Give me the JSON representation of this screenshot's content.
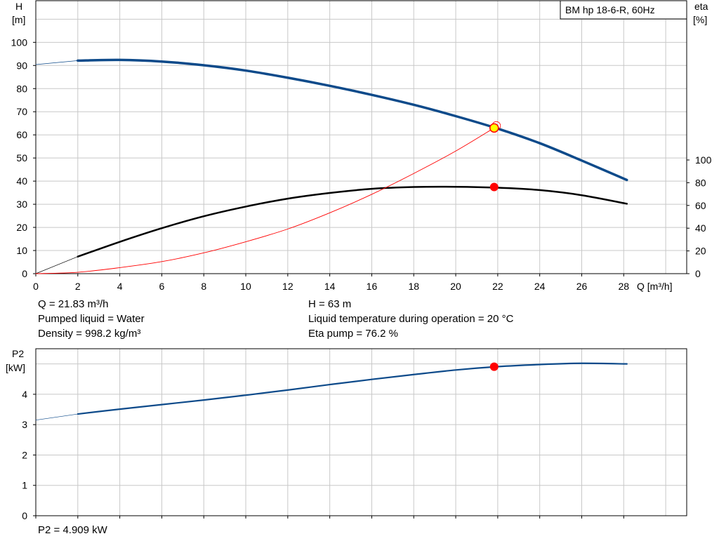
{
  "legend_title": "BM hp  18-6-R, 60Hz",
  "chart_data": [
    {
      "type": "line",
      "name": "head-efficiency",
      "xlabel": "Q [m³/h]",
      "xlim": [
        0,
        31
      ],
      "x_ticks": [
        0,
        2,
        4,
        6,
        8,
        10,
        12,
        14,
        16,
        18,
        20,
        22,
        24,
        26,
        28
      ],
      "left_axis": {
        "label_line1": "H",
        "label_line2": "[m]",
        "ylim": [
          0,
          118
        ],
        "ticks": [
          0,
          10,
          20,
          30,
          40,
          50,
          60,
          70,
          80,
          90,
          100
        ]
      },
      "right_axis": {
        "label_line1": "eta",
        "label_line2": "[%]",
        "ylim": [
          0,
          100
        ],
        "ticks": [
          0,
          20,
          40,
          60,
          80,
          100
        ]
      },
      "grid": true,
      "series": [
        {
          "id": "head",
          "axis": "left",
          "color": "#0d4a8a",
          "x": [
            2,
            4,
            6,
            8,
            10,
            12,
            14,
            16,
            18,
            20,
            22,
            24,
            26,
            28.15
          ],
          "y": [
            92.1,
            92.4,
            91.7,
            90.1,
            87.8,
            84.7,
            81.2,
            77.3,
            73.0,
            68.1,
            62.7,
            56.4,
            48.9,
            40.5
          ]
        },
        {
          "id": "head-extrapolation",
          "axis": "left",
          "color": "#0d4a8a",
          "x": [
            0,
            2
          ],
          "y": [
            90.4,
            92.1
          ]
        },
        {
          "id": "efficiency",
          "axis": "right",
          "color": "#000000",
          "x": [
            2,
            4,
            6,
            8,
            10,
            12,
            14,
            16,
            18,
            20,
            22,
            24,
            26,
            28.15
          ],
          "y": [
            15.0,
            28.0,
            40.0,
            50.5,
            59.0,
            66.0,
            71.0,
            74.6,
            76.2,
            76.4,
            75.6,
            73.5,
            69.0,
            61.5
          ]
        },
        {
          "id": "efficiency-extrapolation",
          "axis": "right",
          "color": "#000000",
          "x": [
            0,
            2
          ],
          "y": [
            0,
            15.0
          ]
        },
        {
          "id": "system-curve",
          "axis": "left",
          "color": "#ff0000",
          "x": [
            0,
            2,
            4,
            6,
            8,
            10,
            12,
            14,
            16,
            18,
            20,
            21.83
          ],
          "y": [
            0,
            0.6,
            2.6,
            5.2,
            9.0,
            13.8,
            19.3,
            26.3,
            34.3,
            43.3,
            53.0,
            63.0
          ]
        }
      ],
      "operating_point": {
        "q": 21.83,
        "h": 63,
        "eta": 76.2
      }
    },
    {
      "type": "line",
      "name": "power",
      "xlim": [
        0,
        31
      ],
      "x_ticks": [
        0,
        2,
        4,
        6,
        8,
        10,
        12,
        14,
        16,
        18,
        20,
        22,
        24,
        26,
        28
      ],
      "left_axis": {
        "label_line1": "P2",
        "label_line2": "[kW]",
        "ylim": [
          0,
          5.5
        ],
        "ticks": [
          0,
          1,
          2,
          3,
          4
        ]
      },
      "grid": true,
      "series": [
        {
          "id": "p2",
          "axis": "left",
          "color": "#0d4a8a",
          "x": [
            2,
            4,
            6,
            8,
            10,
            12,
            14,
            16,
            18,
            20,
            22,
            24,
            26,
            28.15
          ],
          "y": [
            3.35,
            3.51,
            3.66,
            3.81,
            3.97,
            4.14,
            4.32,
            4.49,
            4.65,
            4.8,
            4.91,
            4.98,
            5.02,
            5.0
          ]
        },
        {
          "id": "p2-extrapolation",
          "axis": "left",
          "color": "#0d4a8a",
          "x": [
            0,
            2
          ],
          "y": [
            3.15,
            3.35
          ]
        }
      ],
      "operating_point": {
        "q": 21.83,
        "p2": 4.909
      }
    }
  ],
  "info": {
    "flow": "Q = 21.83 m³/h",
    "head": "H = 63 m",
    "liquid": "Pumped liquid = Water",
    "temperature": "Liquid temperature during operation = 20 °C",
    "density": "Density = 998.2 kg/m³",
    "eta_pump": "Eta pump = 76.2 %",
    "p2": "P2 = 4.909 kW"
  }
}
